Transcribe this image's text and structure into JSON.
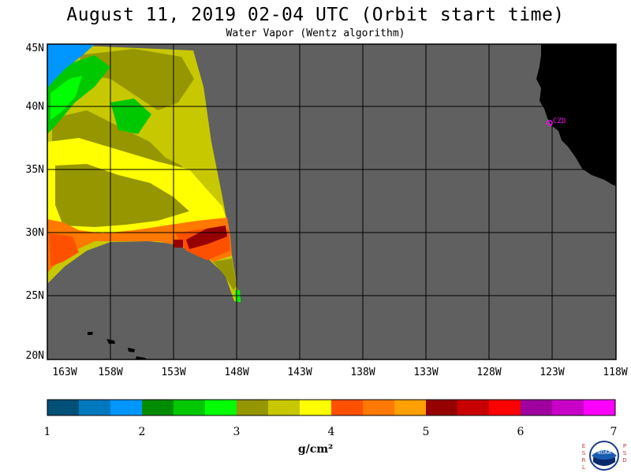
{
  "header": {
    "title": "August 11, 2019  02-04 UTC  (Orbit start time)",
    "subtitle": "Water Vapor (Wentz algorithm)"
  },
  "map": {
    "lat_labels": [
      "45N",
      "40N",
      "35N",
      "30N",
      "25N",
      "20N"
    ],
    "lon_labels": [
      "163W",
      "158W",
      "153W",
      "148W",
      "143W",
      "138W",
      "133W",
      "128W",
      "123W",
      "118W"
    ],
    "lat_range": [
      20,
      45
    ],
    "lon_range": [
      -163,
      -118
    ],
    "station_label": "CZD",
    "colors": {
      "ocean_nodata": "#606060",
      "land": "#000000",
      "station": "#ff00ff",
      "grid": "#000000"
    }
  },
  "legend": {
    "tick_labels": [
      "1",
      "2",
      "3",
      "4",
      "5",
      "6",
      "7"
    ],
    "units": "g/cm²",
    "colors": [
      "#005078",
      "#0078be",
      "#0096ff",
      "#008c00",
      "#00c800",
      "#00ff00",
      "#969600",
      "#c8c800",
      "#ffff00",
      "#ff5000",
      "#ff7800",
      "#ffa000",
      "#960000",
      "#c80000",
      "#ff0000",
      "#a000a0",
      "#c800c8",
      "#ff00ff"
    ]
  },
  "logo": {
    "left_letters": "ESRL",
    "right_letters": "PSD",
    "center": "NOAA",
    "icon": "noaa-logo-icon"
  }
}
